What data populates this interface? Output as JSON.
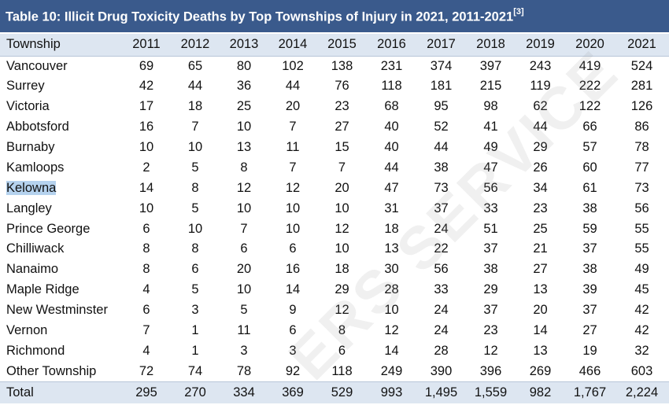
{
  "title": "Table 10: Illicit Drug Toxicity Deaths by Top Townships of Injury in 2021, 2011-2021",
  "title_ref": "[3]",
  "columns": [
    "Township",
    "2011",
    "2012",
    "2013",
    "2014",
    "2015",
    "2016",
    "2017",
    "2018",
    "2019",
    "2020",
    "2021"
  ],
  "rows": [
    [
      "Vancouver",
      "69",
      "65",
      "80",
      "102",
      "138",
      "231",
      "374",
      "397",
      "243",
      "419",
      "524"
    ],
    [
      "Surrey",
      "42",
      "44",
      "36",
      "44",
      "76",
      "118",
      "181",
      "215",
      "119",
      "222",
      "281"
    ],
    [
      "Victoria",
      "17",
      "18",
      "25",
      "20",
      "23",
      "68",
      "95",
      "98",
      "62",
      "122",
      "126"
    ],
    [
      "Abbotsford",
      "16",
      "7",
      "10",
      "7",
      "27",
      "40",
      "52",
      "41",
      "44",
      "66",
      "86"
    ],
    [
      "Burnaby",
      "10",
      "10",
      "13",
      "11",
      "15",
      "40",
      "44",
      "49",
      "29",
      "57",
      "78"
    ],
    [
      "Kamloops",
      "2",
      "5",
      "8",
      "7",
      "7",
      "44",
      "38",
      "47",
      "26",
      "60",
      "77"
    ],
    [
      "Kelowna",
      "14",
      "8",
      "12",
      "12",
      "20",
      "47",
      "73",
      "56",
      "34",
      "61",
      "73"
    ],
    [
      "Langley",
      "10",
      "5",
      "10",
      "10",
      "10",
      "31",
      "37",
      "33",
      "23",
      "38",
      "56"
    ],
    [
      "Prince George",
      "6",
      "10",
      "7",
      "10",
      "12",
      "18",
      "24",
      "51",
      "25",
      "59",
      "55"
    ],
    [
      "Chilliwack",
      "8",
      "8",
      "6",
      "6",
      "10",
      "13",
      "22",
      "37",
      "21",
      "37",
      "55"
    ],
    [
      "Nanaimo",
      "8",
      "6",
      "20",
      "16",
      "18",
      "30",
      "56",
      "38",
      "27",
      "38",
      "49"
    ],
    [
      "Maple Ridge",
      "4",
      "5",
      "10",
      "14",
      "29",
      "28",
      "33",
      "29",
      "13",
      "39",
      "45"
    ],
    [
      "New Westminster",
      "6",
      "3",
      "5",
      "9",
      "12",
      "10",
      "24",
      "37",
      "20",
      "37",
      "42"
    ],
    [
      "Vernon",
      "7",
      "1",
      "11",
      "6",
      "8",
      "12",
      "24",
      "23",
      "14",
      "27",
      "42"
    ],
    [
      "Richmond",
      "4",
      "1",
      "3",
      "3",
      "6",
      "14",
      "28",
      "12",
      "13",
      "19",
      "32"
    ],
    [
      "Other Township",
      "72",
      "74",
      "78",
      "92",
      "118",
      "249",
      "390",
      "396",
      "269",
      "466",
      "603"
    ]
  ],
  "total": [
    "Total",
    "295",
    "270",
    "334",
    "369",
    "529",
    "993",
    "1,495",
    "1,559",
    "982",
    "1,767",
    "2,224"
  ],
  "highlighted_row": 6,
  "watermark": "ERS SERVICE",
  "colors": {
    "title_bg": "#3a5a8c",
    "header_bg": "#dde6f1",
    "highlight": "#b5d2ee"
  }
}
